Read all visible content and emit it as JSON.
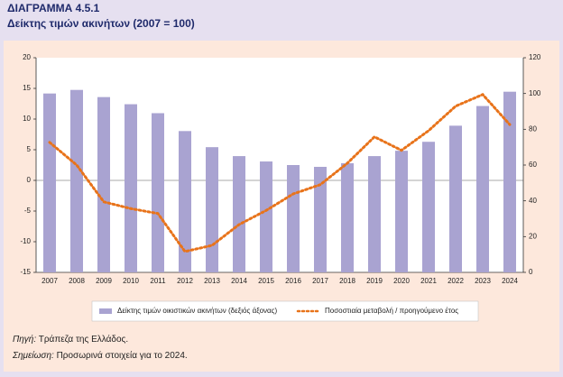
{
  "chart_data": {
    "type": "bar-line",
    "title": "ΔΙΑΓΡΑΜΜΑ 4.5.1",
    "subtitle": "Δείκτης τιμών ακινήτων (2007 = 100)",
    "categories": [
      "2007",
      "2008",
      "2009",
      "2010",
      "2011",
      "2012",
      "2013",
      "2014",
      "2015",
      "2016",
      "2017",
      "2018",
      "2019",
      "2020",
      "2021",
      "2022",
      "2023",
      "2024"
    ],
    "series": [
      {
        "name": "Δείκτης τιμών οικιστικών ακινήτων (δεξιός άξονας)",
        "kind": "bar",
        "axis": "y2",
        "color": "#a9a3d1",
        "values": [
          100,
          102,
          98,
          94,
          89,
          79,
          70,
          65,
          62,
          60,
          59,
          61,
          65,
          68,
          73,
          82,
          93,
          101
        ]
      },
      {
        "name": "Ποσοστιαία μεταβολή / προηγούμενο έτος",
        "kind": "line",
        "axis": "y",
        "color": "#e8731a",
        "values": [
          6.2,
          2.5,
          -3.5,
          -4.6,
          -5.4,
          -11.6,
          -10.6,
          -7.2,
          -4.9,
          -2.2,
          -0.7,
          2.8,
          7.1,
          4.9,
          8.1,
          12.1,
          14.0,
          9.1
        ]
      }
    ],
    "ylim": [
      -15,
      20
    ],
    "yticks": [
      -15,
      -10,
      -5,
      0,
      5,
      10,
      15,
      20
    ],
    "y2lim": [
      0,
      120
    ],
    "y2ticks": [
      0,
      20,
      40,
      60,
      80,
      100,
      120
    ],
    "grid": false,
    "legend": "bottom"
  },
  "notes": {
    "source_label": "Πηγή:",
    "source_text": "Τράπεζα της Ελλάδος.",
    "note_label": "Σημείωση:",
    "note_text": "Προσωρινά στοιχεία για το 2024."
  }
}
